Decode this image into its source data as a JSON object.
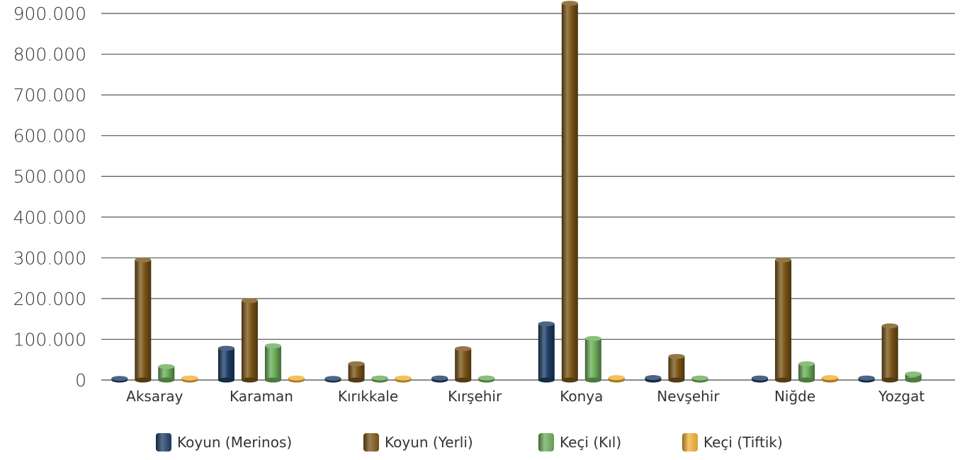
{
  "chart_data": {
    "type": "bar",
    "categories": [
      "Aksaray",
      "Karaman",
      "Kırıkkale",
      "Kırşehir",
      "Konya",
      "Nevşehir",
      "Niğde",
      "Yozgat"
    ],
    "series": [
      {
        "name": "Koyun (Merinos)",
        "color": "#1d3e66",
        "values": [
          4000,
          78000,
          4000,
          5000,
          138000,
          6000,
          5000,
          5000
        ]
      },
      {
        "name": "Koyun (Yerli)",
        "color": "#7a5518",
        "values": [
          295000,
          195000,
          40000,
          77000,
          925000,
          58000,
          295000,
          133000
        ]
      },
      {
        "name": "Keçi (Kıl)",
        "color": "#6cae5a",
        "values": [
          33000,
          84000,
          5000,
          5000,
          102000,
          5000,
          40000,
          15000
        ]
      },
      {
        "name": "Keçi (Tiftik)",
        "color": "#f2b134",
        "values": [
          5000,
          5000,
          5000,
          0,
          6000,
          0,
          6000,
          0
        ]
      }
    ],
    "yticks": [
      "900.000",
      "800.000",
      "700.000",
      "600.000",
      "500.000",
      "400.000",
      "300.000",
      "200.000",
      "100.000",
      "0"
    ],
    "ylim": [
      0,
      900000
    ],
    "grid": true,
    "legend_position": "bottom",
    "title": "",
    "xlabel": "",
    "ylabel": ""
  }
}
